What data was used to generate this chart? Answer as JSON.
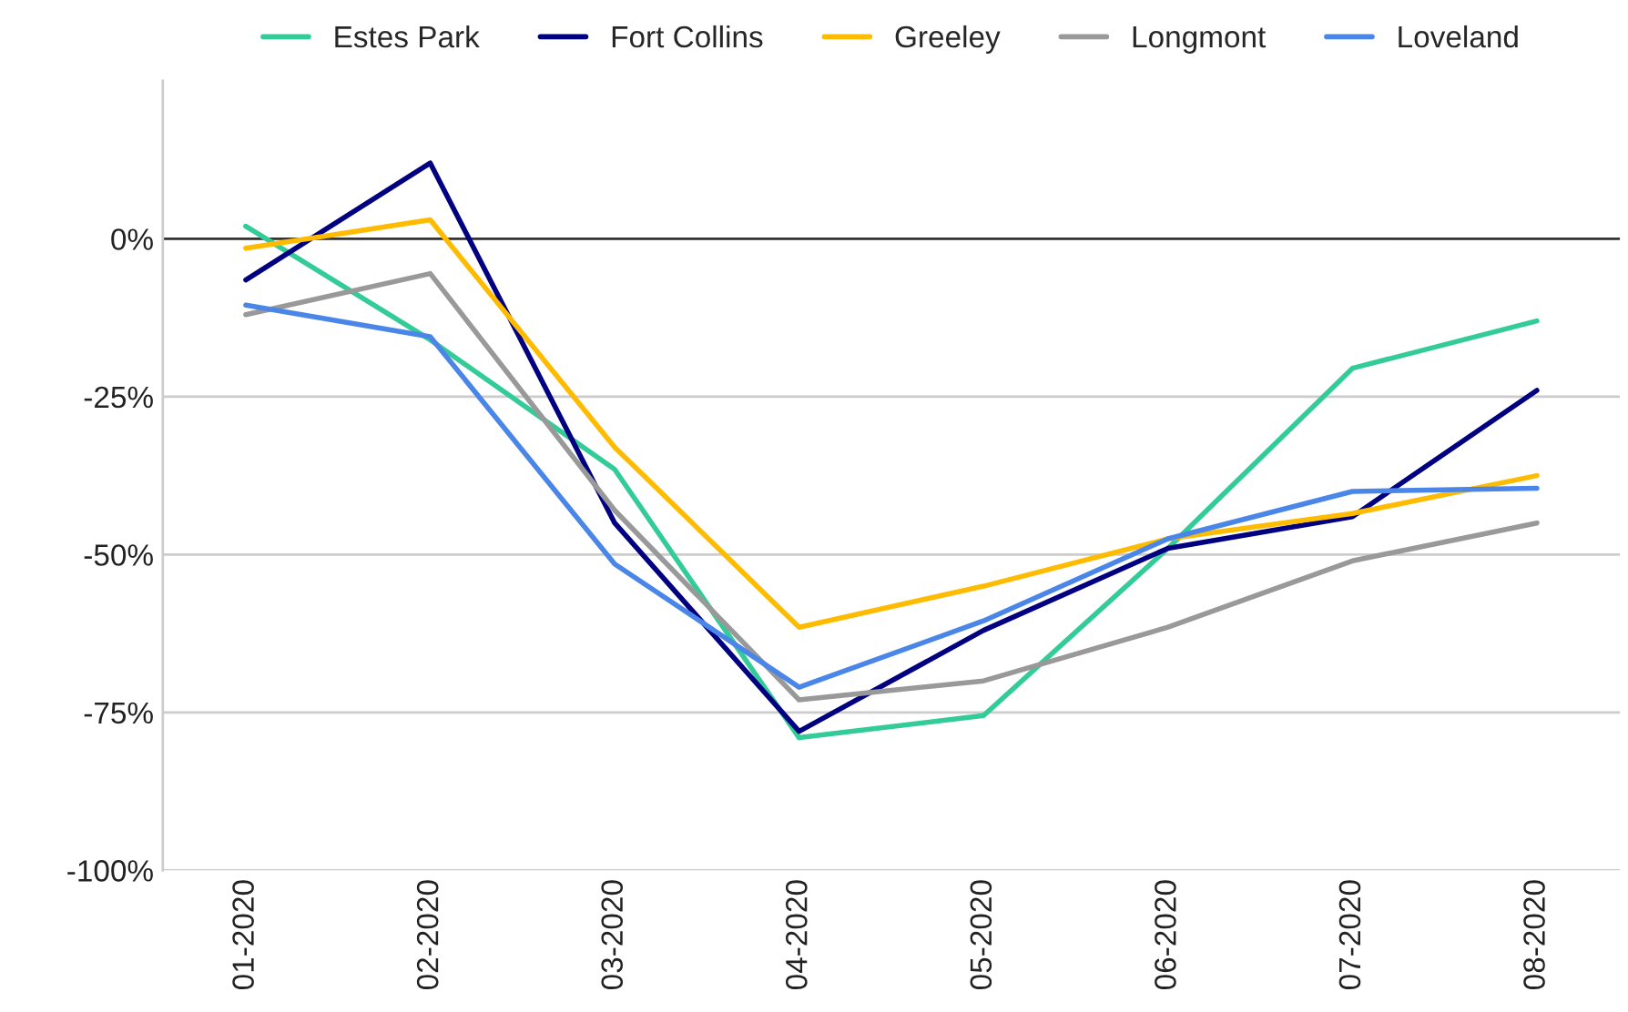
{
  "chart_data": {
    "type": "line",
    "categories": [
      "01-2020",
      "02-2020",
      "03-2020",
      "04-2020",
      "05-2020",
      "06-2020",
      "07-2020",
      "08-2020"
    ],
    "series": [
      {
        "name": "Estes Park",
        "color": "#33cc99",
        "values": [
          2,
          -16,
          -36.5,
          -79,
          -75.5,
          -49,
          -20.5,
          -13
        ]
      },
      {
        "name": "Fort Collins",
        "color": "#000080",
        "values": [
          -6.5,
          12,
          -45,
          -78,
          -62,
          -49,
          -44,
          -24
        ]
      },
      {
        "name": "Greeley",
        "color": "#ffbb00",
        "values": [
          -1.5,
          3,
          -33,
          -61.5,
          -55,
          -47.5,
          -43.5,
          -37.5
        ]
      },
      {
        "name": "Longmont",
        "color": "#999999",
        "values": [
          -12,
          -5.5,
          -43,
          -73,
          -70,
          -61.5,
          -51,
          -45
        ]
      },
      {
        "name": "Loveland",
        "color": "#4a86e8",
        "values": [
          -10.5,
          -15.5,
          -51.5,
          -71,
          -60.5,
          -47.5,
          -40,
          -39.5
        ]
      }
    ],
    "ylim": [
      -100,
      25
    ],
    "yticks": [
      {
        "value": 0,
        "label": "0%"
      },
      {
        "value": -25,
        "label": "-25%"
      },
      {
        "value": -50,
        "label": "-50%"
      },
      {
        "value": -75,
        "label": "-75%"
      },
      {
        "value": -100,
        "label": "-100%"
      }
    ],
    "ref_lines": [
      {
        "axis": "y",
        "value": 0,
        "color": "#333333"
      }
    ],
    "grid": "y",
    "legend": "top",
    "marker": "none",
    "line_style": "solid"
  }
}
